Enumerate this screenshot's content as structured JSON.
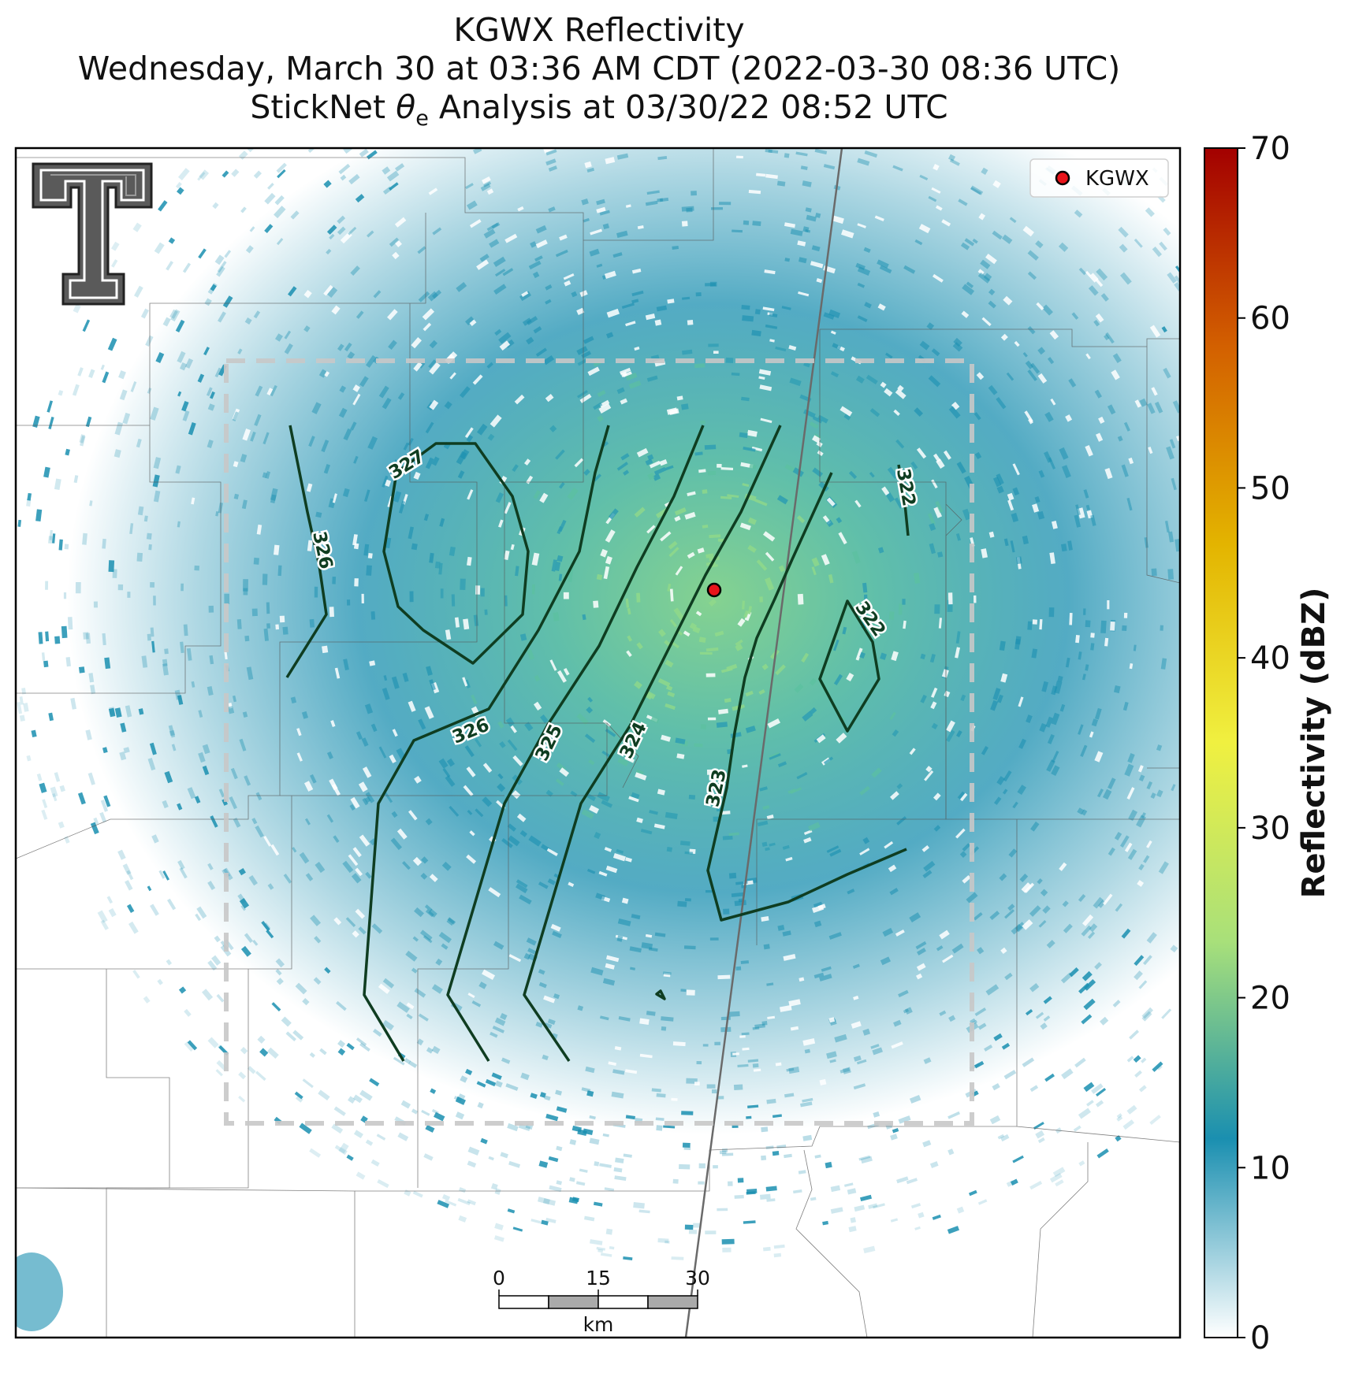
{
  "title": {
    "line1": "KGWX Reflectivity",
    "line2": "Wednesday, March 30 at 03:36 AM CDT (2022-03-30 08:36 UTC)",
    "line3_prefix": "StickNet ",
    "line3_theta": "θ",
    "line3_sub": "e",
    "line3_suffix": " Analysis at 03/30/22 08:52 UTC"
  },
  "legend": {
    "marker_label": "KGWX",
    "marker_color": "#e8141b"
  },
  "colorbar": {
    "label": "Reflectivity (dBZ)",
    "ticks": [
      "0",
      "10",
      "20",
      "30",
      "40",
      "50",
      "60",
      "70"
    ],
    "min": 0,
    "max": 70,
    "stops": [
      "#ffffff",
      "#1a8fb0",
      "#a8e07a",
      "#f0f040",
      "#e3b400",
      "#d36000",
      "#a30000"
    ]
  },
  "scale_bar": {
    "ticks": [
      "0",
      "15",
      "30"
    ],
    "unit": "km"
  },
  "contours": [
    {
      "label": "322",
      "value": 322
    },
    {
      "label": "322",
      "value": 322
    },
    {
      "label": "323",
      "value": 323
    },
    {
      "label": "324",
      "value": 324
    },
    {
      "label": "325",
      "value": 325
    },
    {
      "label": "326",
      "value": 326
    },
    {
      "label": "326",
      "value": 326
    },
    {
      "label": "327",
      "value": 327
    }
  ],
  "colors": {
    "contour": "#0f3d21",
    "analysis_box": "#c8c8c8",
    "echo": "#1a8fb0",
    "echo_strong": "#7fd08a"
  },
  "logo": "texas-tech-double-t-logo"
}
